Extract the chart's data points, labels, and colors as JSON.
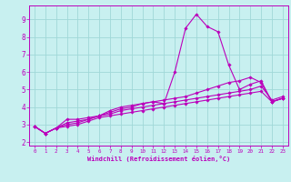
{
  "title": "",
  "xlabel": "Windchill (Refroidissement éolien,°C)",
  "ylabel": "",
  "xlim": [
    -0.5,
    23.5
  ],
  "ylim": [
    1.8,
    9.8
  ],
  "xticks": [
    0,
    1,
    2,
    3,
    4,
    5,
    6,
    7,
    8,
    9,
    10,
    11,
    12,
    13,
    14,
    15,
    16,
    17,
    18,
    19,
    20,
    21,
    22,
    23
  ],
  "yticks": [
    2,
    3,
    4,
    5,
    6,
    7,
    8,
    9
  ],
  "bg_color": "#c8f0f0",
  "line_color": "#bb00bb",
  "grid_color": "#a0d8d8",
  "lines": [
    {
      "x": [
        0,
        1,
        2,
        3,
        4,
        5,
        6,
        7,
        8,
        9,
        10,
        11,
        12,
        13,
        14,
        15,
        16,
        17,
        18,
        19,
        20,
        21,
        22,
        23
      ],
      "y": [
        2.9,
        2.5,
        2.8,
        3.1,
        3.2,
        3.3,
        3.5,
        3.8,
        4.0,
        4.1,
        4.2,
        4.3,
        4.2,
        6.0,
        8.5,
        9.3,
        8.6,
        8.3,
        6.4,
        5.0,
        5.3,
        5.5,
        4.3,
        4.5
      ]
    },
    {
      "x": [
        0,
        1,
        2,
        3,
        4,
        5,
        6,
        7,
        8,
        9,
        10,
        11,
        12,
        13,
        14,
        15,
        16,
        17,
        18,
        19,
        20,
        21,
        22,
        23
      ],
      "y": [
        2.9,
        2.5,
        2.8,
        3.3,
        3.3,
        3.4,
        3.5,
        3.7,
        3.9,
        4.0,
        4.2,
        4.3,
        4.4,
        4.5,
        4.6,
        4.8,
        5.0,
        5.2,
        5.4,
        5.5,
        5.7,
        5.4,
        4.3,
        4.5
      ]
    },
    {
      "x": [
        0,
        1,
        2,
        3,
        4,
        5,
        6,
        7,
        8,
        9,
        10,
        11,
        12,
        13,
        14,
        15,
        16,
        17,
        18,
        19,
        20,
        21,
        22,
        23
      ],
      "y": [
        2.9,
        2.5,
        2.8,
        3.0,
        3.1,
        3.3,
        3.5,
        3.6,
        3.8,
        3.9,
        4.0,
        4.1,
        4.2,
        4.3,
        4.4,
        4.5,
        4.6,
        4.7,
        4.8,
        4.9,
        5.0,
        5.2,
        4.4,
        4.6
      ]
    },
    {
      "x": [
        0,
        1,
        2,
        3,
        4,
        5,
        6,
        7,
        8,
        9,
        10,
        11,
        12,
        13,
        14,
        15,
        16,
        17,
        18,
        19,
        20,
        21,
        22,
        23
      ],
      "y": [
        2.9,
        2.5,
        2.8,
        2.9,
        3.0,
        3.2,
        3.4,
        3.5,
        3.6,
        3.7,
        3.8,
        3.9,
        4.0,
        4.1,
        4.2,
        4.3,
        4.4,
        4.5,
        4.6,
        4.7,
        4.8,
        4.9,
        4.3,
        4.5
      ]
    }
  ]
}
